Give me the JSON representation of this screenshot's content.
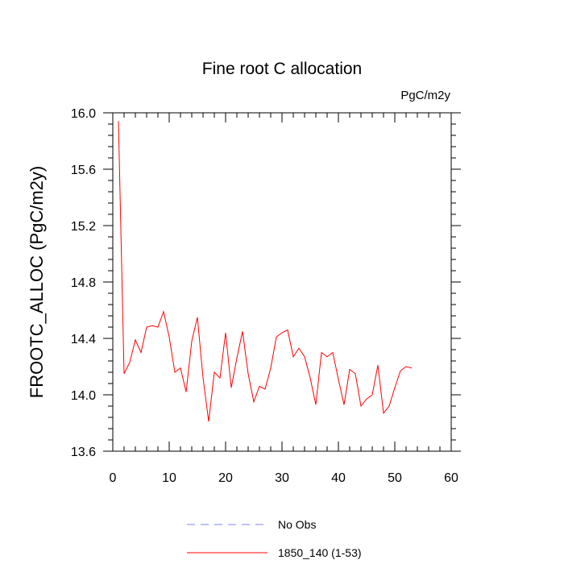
{
  "chart_data": {
    "type": "line",
    "title": "Fine root C allocation",
    "units_label": "PgC/m2y",
    "xlabel": "",
    "ylabel": "FROOTC_ALLOC  (PgC/m2y)",
    "xlim": [
      0,
      60
    ],
    "ylim": [
      13.6,
      16.0
    ],
    "x_ticks": [
      0,
      10,
      20,
      30,
      40,
      50,
      60
    ],
    "x_tick_labels": [
      "0",
      "10",
      "20",
      "30",
      "40",
      "50",
      "60"
    ],
    "y_ticks": [
      13.6,
      14.0,
      14.4,
      14.8,
      15.2,
      15.6,
      16.0
    ],
    "y_tick_labels": [
      "13.6",
      "14.0",
      "14.4",
      "14.8",
      "15.2",
      "15.6",
      "16.0"
    ],
    "series": [
      {
        "name": "1850_140 (1-53)",
        "color": "#ff0000",
        "dash": "solid",
        "x": [
          1,
          2,
          3,
          4,
          5,
          6,
          7,
          8,
          9,
          10,
          11,
          12,
          13,
          14,
          15,
          16,
          17,
          18,
          19,
          20,
          21,
          22,
          23,
          24,
          25,
          26,
          27,
          28,
          29,
          30,
          31,
          32,
          33,
          34,
          35,
          36,
          37,
          38,
          39,
          40,
          41,
          42,
          43,
          44,
          45,
          46,
          47,
          48,
          49,
          50,
          51,
          52,
          53
        ],
        "values": [
          15.94,
          14.15,
          14.23,
          14.39,
          14.3,
          14.48,
          14.49,
          14.48,
          14.59,
          14.41,
          14.16,
          14.19,
          14.02,
          14.38,
          14.55,
          14.12,
          13.81,
          14.16,
          14.12,
          14.44,
          14.05,
          14.26,
          14.45,
          14.15,
          13.95,
          14.06,
          14.04,
          14.19,
          14.41,
          14.44,
          14.46,
          14.27,
          14.33,
          14.27,
          14.12,
          13.93,
          14.3,
          14.27,
          14.3,
          14.11,
          13.93,
          14.18,
          14.15,
          13.92,
          13.97,
          14.0,
          14.21,
          13.87,
          13.92,
          14.05,
          14.17,
          14.2,
          14.19
        ]
      },
      {
        "name": "No Obs",
        "color": "#8080ff",
        "dash": "dashed",
        "x": [],
        "values": []
      }
    ],
    "legend": [
      {
        "label": "No Obs",
        "color": "#8080ff",
        "dash": "dashed"
      },
      {
        "label": "1850_140 (1-53)",
        "color": "#ff0000",
        "dash": "solid"
      }
    ]
  }
}
